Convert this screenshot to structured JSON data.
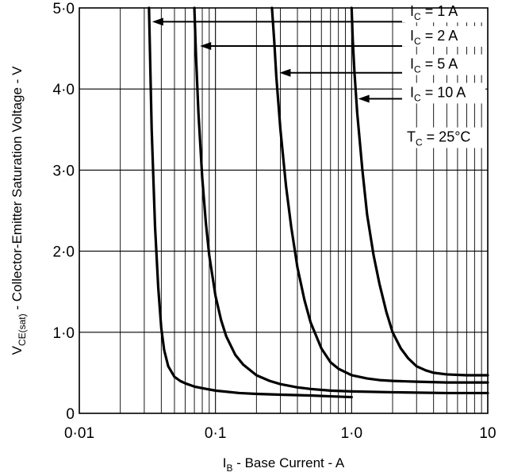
{
  "chart_data": {
    "type": "line",
    "x_scale": "log",
    "y_scale": "linear",
    "xlim": [
      0.01,
      10
    ],
    "ylim": [
      0,
      5
    ],
    "grid": true,
    "x_ticks": [
      "0·01",
      "0·1",
      "1·0",
      "10"
    ],
    "y_ticks": [
      "0",
      "1·0",
      "2·0",
      "3·0",
      "4·0",
      "5·0"
    ],
    "xlabel": {
      "main": "I",
      "sub": "B",
      "rest": " - Base Current - A"
    },
    "ylabel": {
      "main": "V",
      "sub": "CE(sat)",
      "rest": " - Collector-Emitter Saturation Voltage - V"
    },
    "annotation": {
      "main": "T",
      "sub": "C",
      "rest": " = 25°C"
    },
    "series": [
      {
        "label": {
          "main": "I",
          "sub": "C",
          "rest": " =   1 A"
        },
        "x": [
          0.0325,
          0.034,
          0.036,
          0.038,
          0.04,
          0.042,
          0.045,
          0.05,
          0.055,
          0.06,
          0.07,
          0.08,
          0.1,
          0.15,
          0.2,
          0.3,
          0.5,
          0.7,
          1.0
        ],
        "y": [
          5.0,
          3.5,
          2.3,
          1.55,
          1.05,
          0.78,
          0.58,
          0.45,
          0.4,
          0.37,
          0.33,
          0.31,
          0.28,
          0.25,
          0.24,
          0.23,
          0.22,
          0.21,
          0.2
        ]
      },
      {
        "label": {
          "main": "I",
          "sub": "C",
          "rest": " =   2 A"
        },
        "x": [
          0.07,
          0.072,
          0.075,
          0.08,
          0.085,
          0.09,
          0.1,
          0.11,
          0.12,
          0.14,
          0.16,
          0.2,
          0.25,
          0.3,
          0.4,
          0.5,
          0.7,
          1.0,
          2.0,
          5.0,
          10
        ],
        "y": [
          5.0,
          4.4,
          3.7,
          2.9,
          2.35,
          1.95,
          1.45,
          1.15,
          0.95,
          0.72,
          0.6,
          0.47,
          0.4,
          0.36,
          0.32,
          0.3,
          0.28,
          0.27,
          0.26,
          0.25,
          0.25
        ]
      },
      {
        "label": {
          "main": "I",
          "sub": "C",
          "rest": " =   5 A"
        },
        "x": [
          0.26,
          0.27,
          0.28,
          0.3,
          0.33,
          0.36,
          0.4,
          0.45,
          0.5,
          0.6,
          0.7,
          0.8,
          1.0,
          1.3,
          1.6,
          2.0,
          3.0,
          5.0,
          10
        ],
        "y": [
          5.0,
          4.6,
          4.15,
          3.5,
          2.8,
          2.3,
          1.8,
          1.4,
          1.12,
          0.8,
          0.63,
          0.55,
          0.47,
          0.43,
          0.41,
          0.4,
          0.39,
          0.38,
          0.38
        ]
      },
      {
        "label": {
          "main": "I",
          "sub": "C",
          "rest": " = 10 A"
        },
        "x": [
          1.0,
          1.02,
          1.05,
          1.1,
          1.2,
          1.3,
          1.45,
          1.6,
          1.8,
          2.0,
          2.3,
          2.6,
          3.0,
          3.5,
          4.0,
          5.0,
          7.0,
          10
        ],
        "y": [
          5.0,
          4.6,
          4.2,
          3.7,
          3.0,
          2.45,
          1.95,
          1.6,
          1.25,
          1.0,
          0.8,
          0.68,
          0.58,
          0.53,
          0.5,
          0.48,
          0.47,
          0.47
        ]
      }
    ]
  }
}
